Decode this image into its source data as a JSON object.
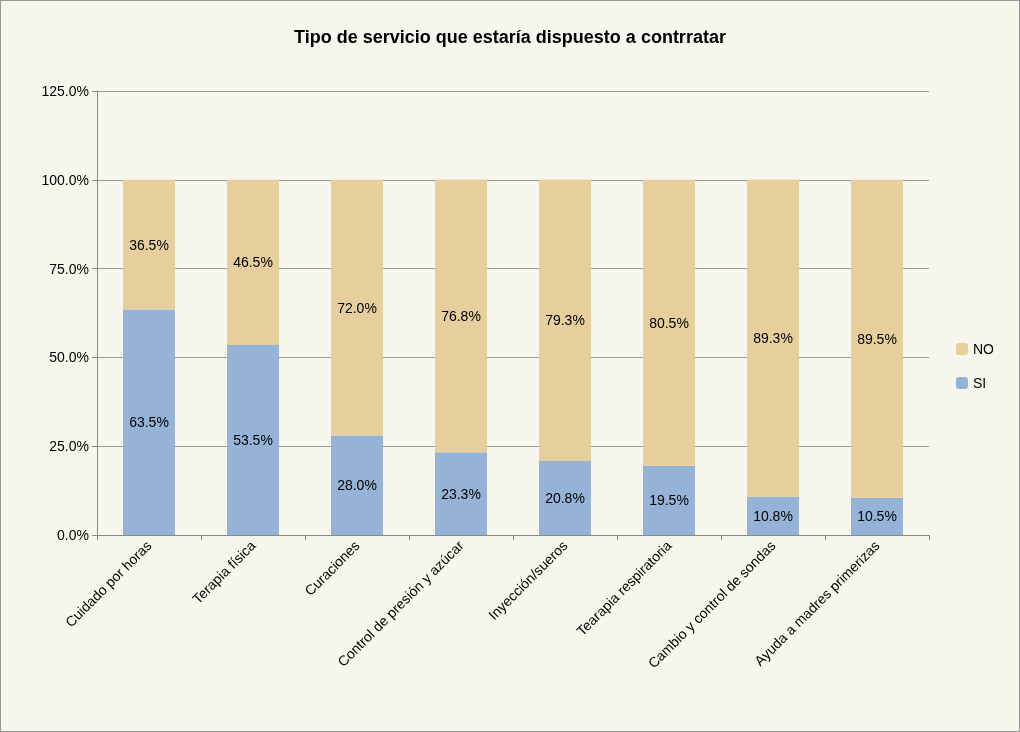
{
  "chart_data": {
    "type": "bar",
    "title": "Tipo de servicio que estaría dispuesto a contrratar",
    "stacked": true,
    "categories": [
      "Cuidado por horas",
      "Terapia física",
      "Curaciones",
      "Control de presión y azúcar",
      "Inyección/sueros",
      "Tearapia respiratoria",
      "Cambio y control de sondas",
      "Ayuda a madres primerizas"
    ],
    "series": [
      {
        "name": "SI",
        "color": "#95b3d7",
        "values": [
          63.5,
          53.5,
          28.0,
          23.3,
          20.8,
          19.5,
          10.8,
          10.5
        ],
        "value_labels": [
          "63.5%",
          "53.5%",
          "28.0%",
          "23.3%",
          "20.8%",
          "19.5%",
          "10.8%",
          "10.5%"
        ]
      },
      {
        "name": "NO",
        "color": "#e6cf9c",
        "values": [
          36.5,
          46.5,
          72.0,
          76.8,
          79.3,
          80.5,
          89.3,
          89.5
        ],
        "value_labels": [
          "36.5%",
          "46.5%",
          "72.0%",
          "76.8%",
          "79.3%",
          "80.5%",
          "89.3%",
          "89.5%"
        ]
      }
    ],
    "ylim": [
      0,
      125
    ],
    "yticks": [
      {
        "value": 0,
        "label": "0.0%"
      },
      {
        "value": 25,
        "label": "25.0%"
      },
      {
        "value": 50,
        "label": "50.0%"
      },
      {
        "value": 75,
        "label": "75.0%"
      },
      {
        "value": 100,
        "label": "100.0%"
      },
      {
        "value": 125,
        "label": "125.0%"
      }
    ],
    "grid": "y",
    "legend": "right"
  }
}
